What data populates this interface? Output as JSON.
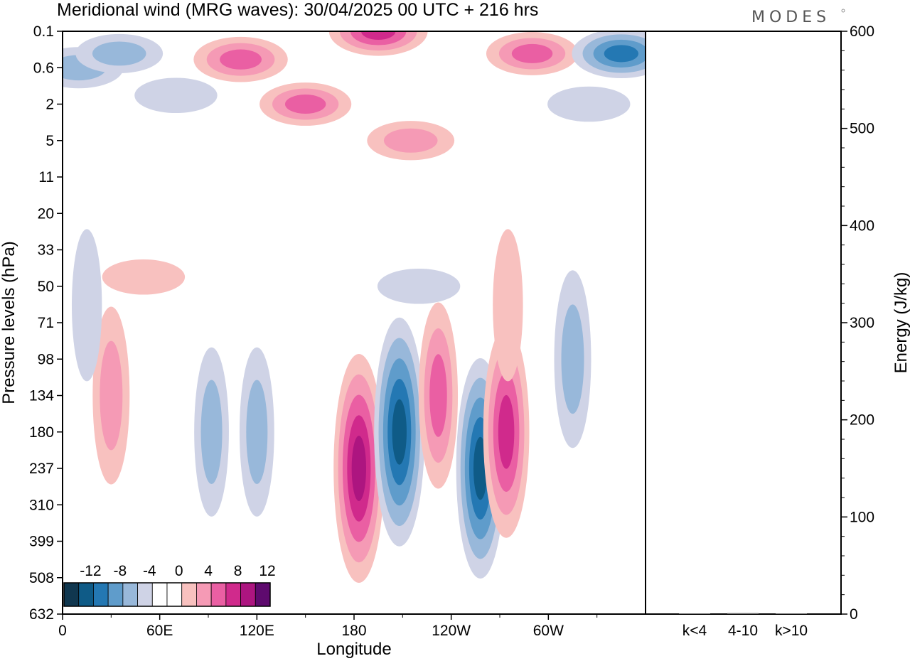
{
  "title": "Meridional wind (MRG waves):  30/04/2025  00 UTC  + 216 hrs",
  "logo": "MODES",
  "colors": {
    "neg": [
      "#10374f",
      "#0f5b87",
      "#2478b3",
      "#5f9ccb",
      "#98b8da",
      "#cfd3e6"
    ],
    "pos": [
      "#f8c1bf",
      "#f59ab5",
      "#ea5fa3",
      "#d02a8c",
      "#ad1580",
      "#5e0a6e"
    ],
    "frame": "#000000"
  },
  "chart_data": [
    {
      "type": "heatmap",
      "title": "",
      "xlabel": "Longitude",
      "ylabel": "Pressure levels (hPa)",
      "x_ticks": [
        "0",
        "60E",
        "120E",
        "180",
        "120W",
        "60W"
      ],
      "x_tick_degrees": [
        0,
        60,
        120,
        180,
        240,
        300
      ],
      "xlim": [
        0,
        360
      ],
      "y_ticks": [
        "0.1",
        "0.6",
        "2",
        "5",
        "11",
        "20",
        "33",
        "50",
        "71",
        "98",
        "134",
        "180",
        "237",
        "310",
        "399",
        "508",
        "632"
      ],
      "colorbar": {
        "labels": [
          "-12",
          "-8",
          "-4",
          "0",
          "4",
          "8",
          "12"
        ],
        "levels": [
          -12,
          -10,
          -8,
          -6,
          -4,
          -2,
          0,
          2,
          4,
          6,
          8,
          10,
          12
        ]
      },
      "features": [
        {
          "lon": 10,
          "level": "0.6",
          "value": -5
        },
        {
          "lon": 35,
          "level": "0.3",
          "value": -4
        },
        {
          "lon": 70,
          "level": "1.5",
          "value": -2
        },
        {
          "lon": 110,
          "level": "0.4",
          "value": 7
        },
        {
          "lon": 150,
          "level": "2",
          "value": 6
        },
        {
          "lon": 195,
          "level": "0.1",
          "value": 9
        },
        {
          "lon": 215,
          "level": "5",
          "value": 4
        },
        {
          "lon": 290,
          "level": "0.3",
          "value": 6
        },
        {
          "lon": 345,
          "level": "0.3",
          "value": -9
        },
        {
          "lon": 325,
          "level": "2",
          "value": -2
        },
        {
          "lon": 30,
          "level": "134",
          "value": 5
        },
        {
          "lon": 92,
          "level": "180",
          "value": -4
        },
        {
          "lon": 120,
          "level": "180",
          "value": -4
        },
        {
          "lon": 183,
          "level": "237",
          "value": 11
        },
        {
          "lon": 208,
          "level": "180",
          "value": -11
        },
        {
          "lon": 232,
          "level": "134",
          "value": 6
        },
        {
          "lon": 258,
          "level": "237",
          "value": -10
        },
        {
          "lon": 274,
          "level": "180",
          "value": 9
        },
        {
          "lon": 315,
          "level": "98",
          "value": -5
        },
        {
          "lon": 220,
          "level": "50",
          "value": -2
        },
        {
          "lon": 275,
          "level": "60",
          "value": 2
        },
        {
          "lon": 50,
          "level": "45",
          "value": 2
        },
        {
          "lon": 15,
          "level": "60",
          "value": -2
        }
      ]
    },
    {
      "type": "bar",
      "title": "",
      "xlabel": "",
      "ylabel": "Energy (J/kg)",
      "categories": [
        "k<4",
        "4-10",
        "k>10"
      ],
      "values": [
        0.5,
        1,
        0.3
      ],
      "ylim": [
        0,
        600
      ],
      "y_ticks": [
        "0",
        "100",
        "200",
        "300",
        "400",
        "500",
        "600"
      ]
    }
  ]
}
